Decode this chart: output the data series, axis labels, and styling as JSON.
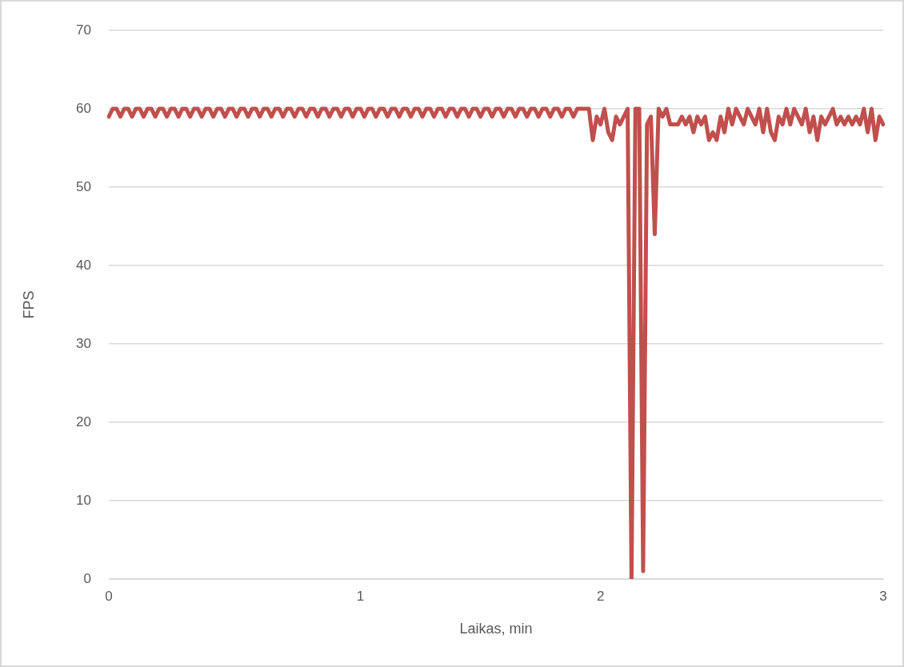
{
  "chart_data": {
    "type": "line",
    "xlabel": "Laikas, min",
    "ylabel": "FPS",
    "grid": "y",
    "marker": "none",
    "ylim": [
      0,
      70
    ],
    "yticks": [
      0,
      10,
      20,
      30,
      40,
      50,
      60,
      70
    ],
    "categories": [
      "0",
      null,
      null,
      null,
      null,
      null,
      null,
      null,
      null,
      null,
      null,
      null,
      null,
      null,
      null,
      null,
      null,
      null,
      null,
      null,
      null,
      null,
      null,
      null,
      null,
      null,
      null,
      null,
      null,
      null,
      null,
      null,
      null,
      null,
      null,
      null,
      null,
      null,
      null,
      null,
      null,
      null,
      null,
      null,
      null,
      null,
      null,
      null,
      null,
      null,
      null,
      null,
      null,
      null,
      null,
      null,
      null,
      null,
      null,
      null,
      null,
      null,
      null,
      null,
      null,
      "1",
      null,
      null,
      null,
      null,
      null,
      null,
      null,
      null,
      null,
      null,
      null,
      null,
      null,
      null,
      null,
      null,
      null,
      null,
      null,
      null,
      null,
      null,
      null,
      null,
      null,
      null,
      null,
      null,
      null,
      null,
      null,
      null,
      null,
      null,
      null,
      null,
      null,
      null,
      null,
      null,
      null,
      null,
      null,
      null,
      null,
      null,
      null,
      null,
      null,
      null,
      null,
      null,
      null,
      null,
      null,
      null,
      null,
      null,
      null,
      null,
      null,
      "2",
      null,
      null,
      null,
      null,
      null,
      null,
      null,
      null,
      null,
      null,
      null,
      null,
      null,
      null,
      null,
      null,
      null,
      null,
      null,
      null,
      null,
      null,
      null,
      null,
      null,
      null,
      null,
      null,
      null,
      null,
      null,
      null,
      null,
      null,
      null,
      null,
      null,
      null,
      null,
      null,
      null,
      null,
      null,
      null,
      null,
      null,
      null,
      null,
      null,
      null,
      null,
      null,
      null,
      null,
      null,
      null,
      null,
      null,
      null,
      null,
      null,
      null,
      null,
      null,
      null,
      null,
      null,
      null,
      null,
      null,
      null,
      null,
      "3"
    ],
    "series": [
      {
        "color": "#c0504d",
        "values": [
          59,
          60,
          60,
          59,
          60,
          60,
          59,
          60,
          60,
          59,
          60,
          60,
          59,
          60,
          60,
          59,
          60,
          60,
          59,
          60,
          60,
          59,
          60,
          60,
          59,
          60,
          60,
          59,
          60,
          60,
          59,
          60,
          60,
          59,
          60,
          60,
          59,
          60,
          60,
          59,
          60,
          60,
          59,
          60,
          60,
          59,
          60,
          60,
          59,
          60,
          60,
          59,
          60,
          60,
          59,
          60,
          60,
          59,
          60,
          60,
          59,
          60,
          60,
          59,
          60,
          60,
          59,
          60,
          60,
          59,
          60,
          60,
          59,
          60,
          60,
          59,
          60,
          60,
          59,
          60,
          60,
          59,
          60,
          60,
          59,
          60,
          60,
          59,
          60,
          60,
          59,
          60,
          60,
          59,
          60,
          60,
          59,
          60,
          60,
          59,
          60,
          60,
          59,
          60,
          60,
          59,
          60,
          60,
          59,
          60,
          60,
          59,
          60,
          60,
          59,
          60,
          60,
          59,
          60,
          60,
          59,
          60,
          60,
          60,
          60,
          56,
          59,
          58,
          60,
          57,
          56,
          59,
          58,
          59,
          60,
          0,
          60,
          60,
          1,
          58,
          59,
          44,
          60,
          59,
          60,
          58,
          58,
          58,
          59,
          58,
          59,
          57,
          59,
          58,
          59,
          56,
          57,
          56,
          59,
          57,
          60,
          58,
          60,
          59,
          58,
          60,
          59,
          58,
          60,
          57,
          60,
          57,
          56,
          59,
          58,
          60,
          58,
          60,
          59,
          58,
          60,
          57,
          59,
          56,
          59,
          58,
          59,
          60,
          58,
          59,
          58,
          59,
          58,
          59,
          58,
          60,
          57,
          60,
          56,
          59,
          58
        ]
      }
    ]
  }
}
